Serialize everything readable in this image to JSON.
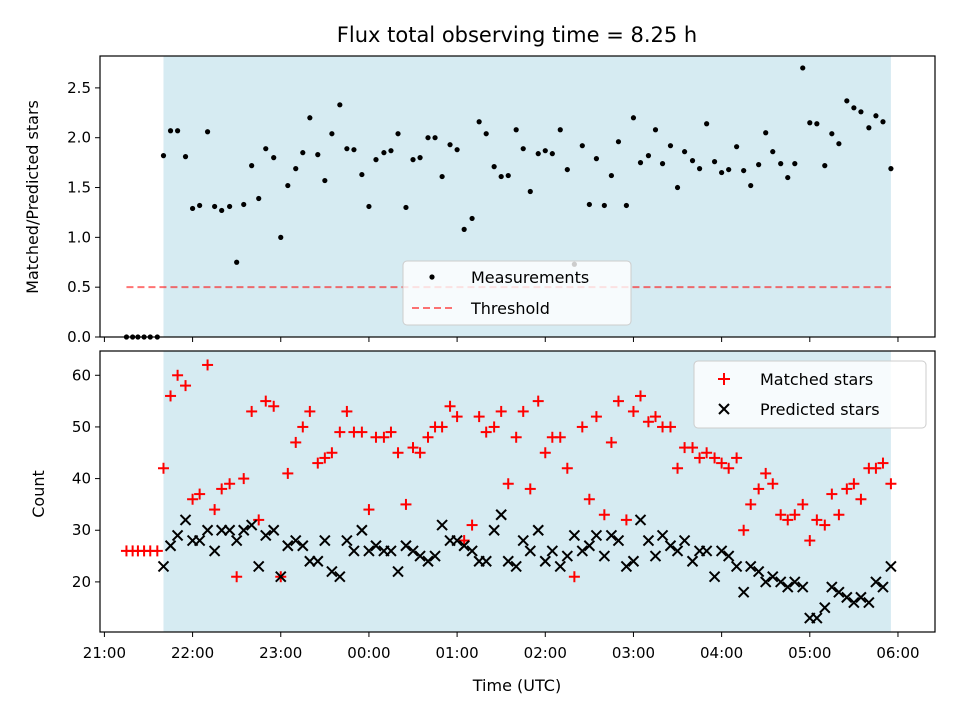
{
  "chart_data": [
    {
      "type": "scatter",
      "title": "Flux total observing time = 8.25 h",
      "xlabel": "",
      "ylabel": "Matched/Predicted stars",
      "ylim": [
        0,
        2.82
      ],
      "yticks": [
        "0.0",
        "0.5",
        "1.0",
        "1.5",
        "2.0",
        "2.5"
      ],
      "xlim_hours": [
        20.95,
        30.42
      ],
      "observing_window_hours": [
        21.67,
        29.92
      ],
      "observing_window_color": "#add8e6",
      "threshold": {
        "name": "Threshold",
        "value": 0.5,
        "x_start_hours": 21.25,
        "x_end_hours": 29.92,
        "color": "#ff0000",
        "style": "dashed"
      },
      "legend": {
        "position": "lower center",
        "entries": [
          "Measurements",
          "Threshold"
        ]
      },
      "series": [
        {
          "name": "Measurements",
          "color": "#000000",
          "marker": "dot",
          "x": [
            21.25,
            21.32,
            21.38,
            21.45,
            21.52,
            21.6,
            21.67,
            21.75,
            21.83,
            21.92,
            22.0,
            22.08,
            22.17,
            22.25,
            22.33,
            22.42,
            22.5,
            22.58,
            22.67,
            22.75,
            22.83,
            22.92,
            23.0,
            23.08,
            23.17,
            23.25,
            23.33,
            23.42,
            23.5,
            23.58,
            23.67,
            23.75,
            23.83,
            23.92,
            24.0,
            24.08,
            24.17,
            24.25,
            24.33,
            24.42,
            24.5,
            24.58,
            24.67,
            24.75,
            24.83,
            24.92,
            25.0,
            25.08,
            25.17,
            25.25,
            25.33,
            25.42,
            25.5,
            25.58,
            25.67,
            25.75,
            25.83,
            25.92,
            26.0,
            26.08,
            26.17,
            26.25,
            26.33,
            26.42,
            26.5,
            26.58,
            26.67,
            26.75,
            26.83,
            26.92,
            27.0,
            27.08,
            27.17,
            27.25,
            27.33,
            27.42,
            27.5,
            27.58,
            27.67,
            27.75,
            27.83,
            27.92,
            28.0,
            28.08,
            28.17,
            28.25,
            28.33,
            28.42,
            28.5,
            28.58,
            28.67,
            28.75,
            28.83,
            28.92,
            29.0,
            29.08,
            29.17,
            29.25,
            29.33,
            29.42,
            29.5,
            29.58,
            29.67,
            29.75,
            29.83,
            29.92
          ],
          "y": [
            0.0,
            0.0,
            0.0,
            0.0,
            0.0,
            0.0,
            1.82,
            2.07,
            2.07,
            1.81,
            1.29,
            1.32,
            2.06,
            1.31,
            1.27,
            1.31,
            0.75,
            1.33,
            1.72,
            1.39,
            1.89,
            1.8,
            1.0,
            1.52,
            1.69,
            1.85,
            2.2,
            1.83,
            1.57,
            2.04,
            2.33,
            1.89,
            1.88,
            1.63,
            1.31,
            1.78,
            1.85,
            1.87,
            2.04,
            1.3,
            1.78,
            1.8,
            2.0,
            2.0,
            1.61,
            1.93,
            1.88,
            1.08,
            1.19,
            2.16,
            2.04,
            1.71,
            1.61,
            1.62,
            2.08,
            1.89,
            1.46,
            1.84,
            1.87,
            1.84,
            2.08,
            1.68,
            0.73,
            1.92,
            1.33,
            1.79,
            1.32,
            1.62,
            1.96,
            1.32,
            2.2,
            1.75,
            1.82,
            2.08,
            1.74,
            1.92,
            1.5,
            1.86,
            1.77,
            1.69,
            2.14,
            1.76,
            1.65,
            1.68,
            1.91,
            1.67,
            1.52,
            1.73,
            2.05,
            1.86,
            1.74,
            1.6,
            1.74,
            2.7,
            2.15,
            2.14,
            1.72,
            2.04,
            1.94,
            2.37,
            2.3,
            2.26,
            2.1,
            2.22,
            2.16,
            1.69
          ]
        }
      ]
    },
    {
      "type": "scatter",
      "title": "",
      "xlabel": "Time (UTC)",
      "ylabel": "Count",
      "ylim": [
        10.3,
        64.7
      ],
      "yticks": [
        "20",
        "30",
        "40",
        "50",
        "60"
      ],
      "xlim_hours": [
        20.95,
        30.42
      ],
      "xtick_hours": [
        21,
        22,
        23,
        24,
        25,
        26,
        27,
        28,
        29,
        30
      ],
      "xticks": [
        "21:00",
        "22:00",
        "23:00",
        "00:00",
        "01:00",
        "02:00",
        "03:00",
        "04:00",
        "05:00",
        "06:00"
      ],
      "observing_window_hours": [
        21.67,
        29.92
      ],
      "observing_window_color": "#add8e6",
      "legend": {
        "position": "upper right",
        "entries": [
          "Matched stars",
          "Predicted stars"
        ]
      },
      "series": [
        {
          "name": "Matched stars",
          "color": "#ff0000",
          "marker": "plus",
          "x": [
            21.25,
            21.32,
            21.38,
            21.45,
            21.52,
            21.6,
            21.67,
            21.75,
            21.83,
            21.92,
            22.0,
            22.08,
            22.17,
            22.25,
            22.33,
            22.42,
            22.5,
            22.58,
            22.67,
            22.75,
            22.83,
            22.92,
            23.0,
            23.08,
            23.17,
            23.25,
            23.33,
            23.42,
            23.5,
            23.58,
            23.67,
            23.75,
            23.83,
            23.92,
            24.0,
            24.08,
            24.17,
            24.25,
            24.33,
            24.42,
            24.5,
            24.58,
            24.67,
            24.75,
            24.83,
            24.92,
            25.0,
            25.08,
            25.17,
            25.25,
            25.33,
            25.42,
            25.5,
            25.58,
            25.67,
            25.75,
            25.83,
            25.92,
            26.0,
            26.08,
            26.17,
            26.25,
            26.33,
            26.42,
            26.5,
            26.58,
            26.67,
            26.75,
            26.83,
            26.92,
            27.0,
            27.08,
            27.17,
            27.25,
            27.33,
            27.42,
            27.5,
            27.58,
            27.67,
            27.75,
            27.83,
            27.92,
            28.0,
            28.08,
            28.17,
            28.25,
            28.33,
            28.42,
            28.5,
            28.58,
            28.67,
            28.75,
            28.83,
            28.92,
            29.0,
            29.08,
            29.17,
            29.25,
            29.33,
            29.42,
            29.5,
            29.58,
            29.67,
            29.75,
            29.83,
            29.92
          ],
          "y": [
            26,
            26,
            26,
            26,
            26,
            26,
            42,
            56,
            60,
            58,
            36,
            37,
            62,
            34,
            38,
            39,
            21,
            40,
            53,
            32,
            55,
            54,
            21,
            41,
            47,
            50,
            53,
            43,
            44,
            45,
            49,
            53,
            49,
            49,
            34,
            48,
            48,
            49,
            45,
            35,
            46,
            45,
            48,
            50,
            50,
            54,
            52,
            28,
            31,
            52,
            49,
            50,
            53,
            39,
            48,
            53,
            38,
            55,
            45,
            48,
            48,
            42,
            21,
            50,
            36,
            52,
            33,
            47,
            55,
            32,
            53,
            56,
            51,
            52,
            50,
            50,
            42,
            46,
            46,
            44,
            45,
            44,
            43,
            42,
            44,
            30,
            35,
            38,
            41,
            39,
            33,
            32,
            33,
            35,
            28,
            32,
            31,
            37,
            33,
            38,
            39,
            36,
            42,
            42,
            43,
            39
          ]
        },
        {
          "name": "Predicted stars",
          "color": "#000000",
          "marker": "cross",
          "x": [
            21.67,
            21.75,
            21.83,
            21.92,
            22.0,
            22.08,
            22.17,
            22.25,
            22.33,
            22.42,
            22.5,
            22.58,
            22.67,
            22.75,
            22.83,
            22.92,
            23.0,
            23.08,
            23.17,
            23.25,
            23.33,
            23.42,
            23.5,
            23.58,
            23.67,
            23.75,
            23.83,
            23.92,
            24.0,
            24.08,
            24.17,
            24.25,
            24.33,
            24.42,
            24.5,
            24.58,
            24.67,
            24.75,
            24.83,
            24.92,
            25.0,
            25.08,
            25.17,
            25.25,
            25.33,
            25.42,
            25.5,
            25.58,
            25.67,
            25.75,
            25.83,
            25.92,
            26.0,
            26.08,
            26.17,
            26.25,
            26.33,
            26.42,
            26.5,
            26.58,
            26.67,
            26.75,
            26.83,
            26.92,
            27.0,
            27.08,
            27.17,
            27.25,
            27.33,
            27.42,
            27.5,
            27.58,
            27.67,
            27.75,
            27.83,
            27.92,
            28.0,
            28.08,
            28.17,
            28.25,
            28.33,
            28.42,
            28.5,
            28.58,
            28.67,
            28.75,
            28.83,
            28.92,
            29.0,
            29.08,
            29.17,
            29.25,
            29.33,
            29.42,
            29.5,
            29.58,
            29.67,
            29.75,
            29.83,
            29.92
          ],
          "y": [
            23,
            27,
            29,
            32,
            28,
            28,
            30,
            26,
            30,
            30,
            28,
            30,
            31,
            23,
            29,
            30,
            21,
            27,
            28,
            27,
            24,
            24,
            28,
            22,
            21,
            28,
            26,
            30,
            26,
            27,
            26,
            26,
            22,
            27,
            26,
            25,
            24,
            25,
            31,
            28,
            28,
            27,
            26,
            24,
            24,
            30,
            33,
            24,
            23,
            28,
            26,
            30,
            24,
            26,
            23,
            25,
            29,
            26,
            27,
            29,
            25,
            29,
            28,
            23,
            24,
            32,
            28,
            25,
            29,
            27,
            26,
            28,
            24,
            26,
            26,
            21,
            26,
            25,
            23,
            18,
            23,
            22,
            20,
            21,
            20,
            19,
            20,
            19,
            13,
            13,
            15,
            19,
            18,
            17,
            16,
            17,
            16,
            20,
            19,
            23
          ]
        }
      ]
    }
  ]
}
